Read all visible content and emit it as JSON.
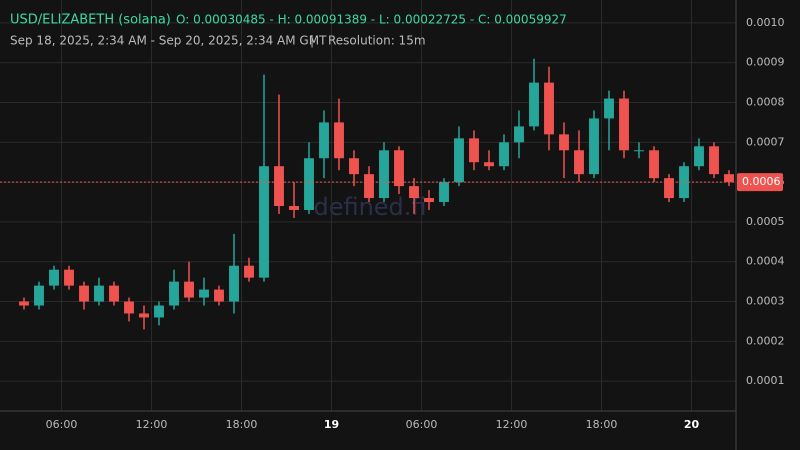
{
  "chart_data": {
    "type": "candlestick",
    "title": "USD/ELIZABETH (solana)",
    "ohlc_text": "O: 0.00030485 - H: 0.00091389 - L: 0.00022725 - C: 0.00059927",
    "subtitle": "Sep 18, 2025, 2:34 AM - Sep 20, 2025, 2:34 AM GMT",
    "separator": "|",
    "resolution": "Resolution: 15m",
    "watermark": "defined.fi",
    "up_color": "#26a69a",
    "down_color": "#ef5350",
    "x": [
      "2025-09-18T03:00",
      "2025-09-18T04:00",
      "2025-09-18T05:00",
      "2025-09-18T06:00",
      "2025-09-18T07:00",
      "2025-09-18T08:00",
      "2025-09-18T09:00",
      "2025-09-18T10:00",
      "2025-09-18T11:00",
      "2025-09-18T12:00",
      "2025-09-18T13:00",
      "2025-09-18T14:00",
      "2025-09-18T15:00",
      "2025-09-18T16:00",
      "2025-09-18T17:00",
      "2025-09-18T18:00",
      "2025-09-18T19:00",
      "2025-09-18T20:00",
      "2025-09-18T21:00",
      "2025-09-18T22:00",
      "2025-09-18T23:00",
      "2025-09-19T00:00",
      "2025-09-19T01:00",
      "2025-09-19T02:00",
      "2025-09-19T03:00",
      "2025-09-19T04:00",
      "2025-09-19T05:00",
      "2025-09-19T06:00",
      "2025-09-19T07:00",
      "2025-09-19T08:00",
      "2025-09-19T09:00",
      "2025-09-19T10:00",
      "2025-09-19T11:00",
      "2025-09-19T12:00",
      "2025-09-19T13:00",
      "2025-09-19T14:00",
      "2025-09-19T15:00",
      "2025-09-19T16:00",
      "2025-09-19T17:00",
      "2025-09-19T18:00",
      "2025-09-19T19:00",
      "2025-09-19T20:00",
      "2025-09-19T21:00",
      "2025-09-19T22:00",
      "2025-09-19T23:00",
      "2025-09-20T00:00",
      "2025-09-20T01:00",
      "2025-09-20T02:00"
    ],
    "open": [
      0.0003,
      0.00029,
      0.00034,
      0.00038,
      0.00034,
      0.0003,
      0.00034,
      0.0003,
      0.00027,
      0.00026,
      0.00029,
      0.00035,
      0.00031,
      0.00033,
      0.0003,
      0.00039,
      0.00036,
      0.00064,
      0.00054,
      0.00053,
      0.00066,
      0.00075,
      0.00066,
      0.00062,
      0.00056,
      0.00068,
      0.00059,
      0.00056,
      0.00055,
      0.0006,
      0.00071,
      0.00065,
      0.00064,
      0.0007,
      0.00074,
      0.00085,
      0.00072,
      0.00068,
      0.00062,
      0.00076,
      0.00081,
      0.00068,
      0.00068,
      0.00061,
      0.00056,
      0.00064,
      0.00069,
      0.00062
    ],
    "high": [
      0.00031,
      0.00035,
      0.00039,
      0.00039,
      0.00035,
      0.00036,
      0.00035,
      0.00031,
      0.00029,
      0.0003,
      0.00038,
      0.0004,
      0.00036,
      0.00034,
      0.00047,
      0.00041,
      0.00087,
      0.00082,
      0.0006,
      0.0007,
      0.00078,
      0.00081,
      0.00068,
      0.00064,
      0.0007,
      0.00069,
      0.00061,
      0.00058,
      0.00061,
      0.00074,
      0.00073,
      0.00068,
      0.00072,
      0.00078,
      0.00091,
      0.00089,
      0.00075,
      0.00073,
      0.00078,
      0.00083,
      0.00083,
      0.0007,
      0.00069,
      0.00062,
      0.00065,
      0.00071,
      0.0007,
      0.00063
    ],
    "low": [
      0.00028,
      0.00028,
      0.00033,
      0.00033,
      0.00028,
      0.00029,
      0.00029,
      0.00025,
      0.00023,
      0.00024,
      0.00028,
      0.0003,
      0.00029,
      0.00029,
      0.00027,
      0.00035,
      0.00035,
      0.00052,
      0.00051,
      0.00052,
      0.00061,
      0.00063,
      0.00059,
      0.00055,
      0.00055,
      0.00057,
      0.00052,
      0.00053,
      0.00054,
      0.00059,
      0.00063,
      0.00063,
      0.00063,
      0.00066,
      0.00073,
      0.00068,
      0.00061,
      0.0006,
      0.00061,
      0.00068,
      0.00066,
      0.00066,
      0.0006,
      0.00055,
      0.00055,
      0.00063,
      0.00061,
      0.00059
    ],
    "close": [
      0.00029,
      0.00034,
      0.00038,
      0.00034,
      0.0003,
      0.00034,
      0.0003,
      0.00027,
      0.00026,
      0.00029,
      0.00035,
      0.00031,
      0.00033,
      0.0003,
      0.00039,
      0.00036,
      0.00064,
      0.00054,
      0.00053,
      0.00066,
      0.00075,
      0.00066,
      0.00062,
      0.00056,
      0.00068,
      0.00059,
      0.00056,
      0.00055,
      0.0006,
      0.00071,
      0.00065,
      0.00064,
      0.0007,
      0.00074,
      0.00085,
      0.00072,
      0.00068,
      0.00062,
      0.00076,
      0.00081,
      0.00068,
      0.00068,
      0.00061,
      0.00056,
      0.00064,
      0.00069,
      0.00062,
      0.0006
    ],
    "current_price": 0.0006,
    "xlim": [
      "2025-09-18T02:34",
      "2025-09-20T02:58"
    ],
    "xticks": [
      {
        "value": "2025-09-18T06:00",
        "label": "06:00"
      },
      {
        "value": "2025-09-18T12:00",
        "label": "12:00"
      },
      {
        "value": "2025-09-18T18:00",
        "label": "18:00"
      },
      {
        "value": "2025-09-19T00:00",
        "label": "19"
      },
      {
        "value": "2025-09-19T06:00",
        "label": "06:00"
      },
      {
        "value": "2025-09-19T12:00",
        "label": "12:00"
      },
      {
        "value": "2025-09-19T18:00",
        "label": "18:00"
      },
      {
        "value": "2025-09-20T00:00",
        "label": "20"
      }
    ],
    "ylim": [
      2.5e-05,
      0.00105
    ],
    "yticks": [
      0.0001,
      0.0002,
      0.0003,
      0.0004,
      0.0005,
      0.0006,
      0.0007,
      0.0008,
      0.0009,
      {
        "value": 0.001,
        "label": "0.0010"
      }
    ],
    "grid": true
  }
}
